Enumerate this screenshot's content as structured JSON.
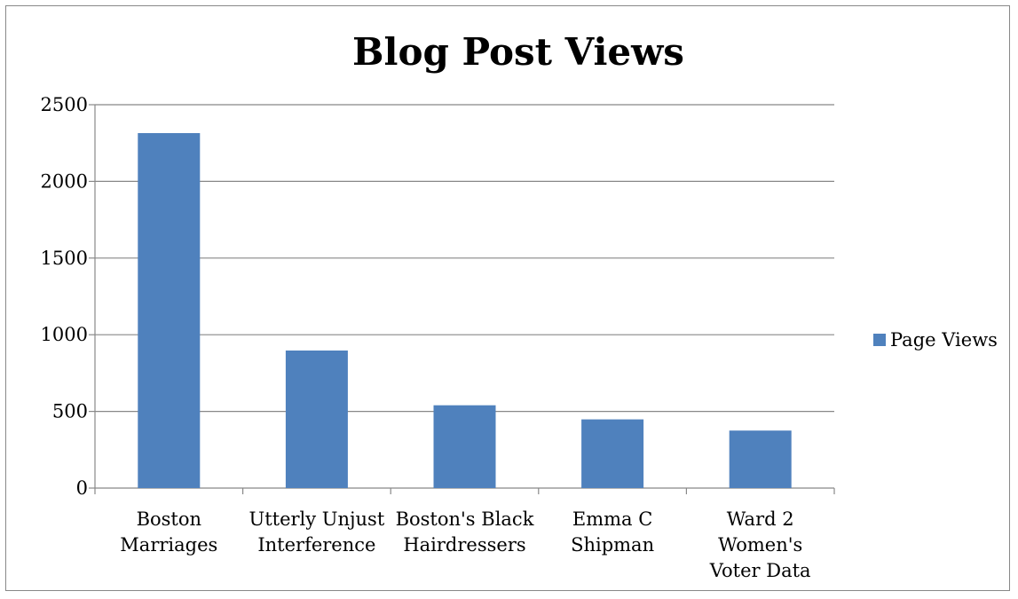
{
  "chart_data": {
    "type": "bar",
    "title": "Blog Post Views",
    "categories": [
      [
        "Boston",
        "Marriages"
      ],
      [
        "Utterly Unjust",
        "Interference"
      ],
      [
        "Boston's Black",
        "Hairdressers"
      ],
      [
        "Emma C",
        "Shipman"
      ],
      [
        "Ward 2",
        "Women's",
        "Voter Data"
      ]
    ],
    "series": [
      {
        "name": "Page Views",
        "values": [
          2315,
          897,
          540,
          448,
          375
        ],
        "color": "#4f81bd"
      }
    ],
    "ylim": [
      0,
      2500
    ],
    "yticks": [
      0,
      500,
      1000,
      1500,
      2000,
      2500
    ],
    "grid": true,
    "legend_position": "right"
  }
}
